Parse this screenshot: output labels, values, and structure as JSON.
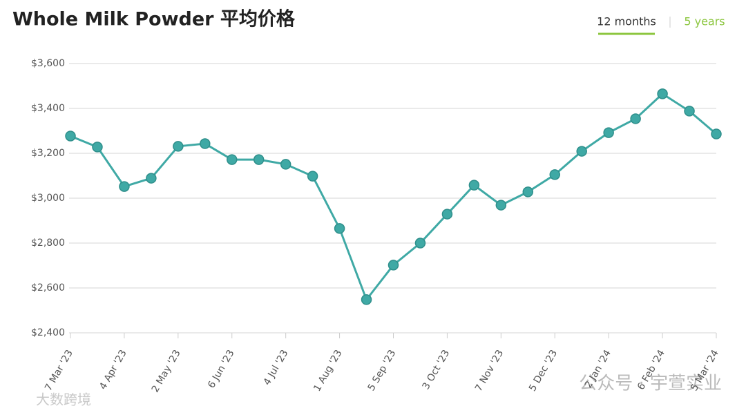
{
  "chart_data": {
    "type": "line",
    "title": "Whole Milk Powder 平均价格",
    "tabs": [
      "12 months",
      "5 years"
    ],
    "categories": [
      "7 Mar '23",
      null,
      "4 Apr '23",
      null,
      "2 May '23",
      null,
      "6 Jun '23",
      null,
      "4 Jul '23",
      null,
      "1 Aug '23",
      null,
      "5 Sep '23",
      null,
      "3 Oct '23",
      null,
      "7 Nov '23",
      null,
      "5 Dec '23",
      null,
      "2 Jan '24",
      null,
      "6 Feb '24",
      null,
      "5 Mar '24"
    ],
    "values": [
      3277,
      3228,
      3052,
      3089,
      3231,
      3243,
      3172,
      3172,
      3151,
      3098,
      2865,
      2548,
      2702,
      2800,
      2929,
      3058,
      2969,
      3028,
      3105,
      3209,
      3292,
      3354,
      3465,
      3388,
      3286
    ],
    "color": "#3fa9a5",
    "ylim": [
      2400,
      3600
    ],
    "yticks": [
      {
        "value": 2400,
        "label": "$2,400"
      },
      {
        "value": 2600,
        "label": "$2,600"
      },
      {
        "value": 2800,
        "label": "$2,800"
      },
      {
        "value": 3000,
        "label": "$3,000"
      },
      {
        "value": 3200,
        "label": "$3,200"
      },
      {
        "value": 3400,
        "label": "$3,400"
      },
      {
        "value": 3600,
        "label": "$3,600"
      }
    ],
    "grid": true,
    "watermarks": [
      "公众号 · 宇萱实业",
      "大数跨境"
    ]
  }
}
